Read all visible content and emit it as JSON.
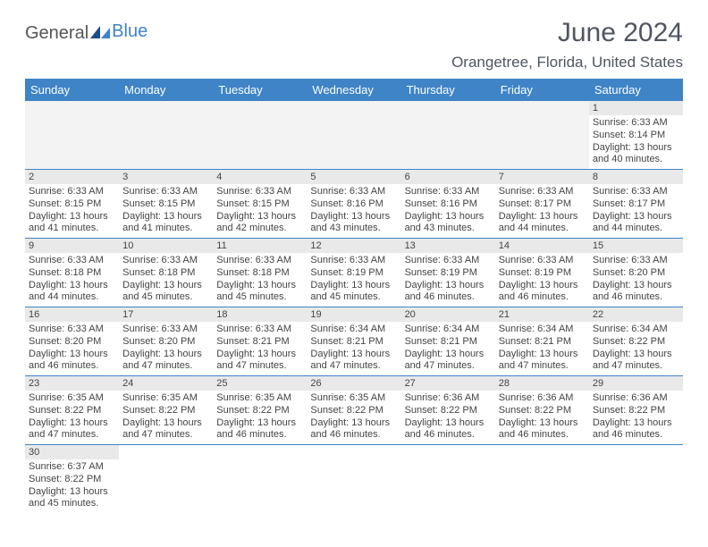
{
  "logo": {
    "general": "General",
    "blue": "Blue"
  },
  "title": "June 2024",
  "location": "Orangetree, Florida, United States",
  "header_bg": "#3e84c6",
  "days": [
    "Sunday",
    "Monday",
    "Tuesday",
    "Wednesday",
    "Thursday",
    "Friday",
    "Saturday"
  ],
  "grid_cols": 7,
  "grid_rows": 6,
  "first_day_col": 6,
  "cells": [
    {
      "n": "1",
      "sr": "6:33 AM",
      "ss": "8:14 PM",
      "dl": "13 hours and 40 minutes."
    },
    {
      "n": "2",
      "sr": "6:33 AM",
      "ss": "8:15 PM",
      "dl": "13 hours and 41 minutes."
    },
    {
      "n": "3",
      "sr": "6:33 AM",
      "ss": "8:15 PM",
      "dl": "13 hours and 41 minutes."
    },
    {
      "n": "4",
      "sr": "6:33 AM",
      "ss": "8:15 PM",
      "dl": "13 hours and 42 minutes."
    },
    {
      "n": "5",
      "sr": "6:33 AM",
      "ss": "8:16 PM",
      "dl": "13 hours and 43 minutes."
    },
    {
      "n": "6",
      "sr": "6:33 AM",
      "ss": "8:16 PM",
      "dl": "13 hours and 43 minutes."
    },
    {
      "n": "7",
      "sr": "6:33 AM",
      "ss": "8:17 PM",
      "dl": "13 hours and 44 minutes."
    },
    {
      "n": "8",
      "sr": "6:33 AM",
      "ss": "8:17 PM",
      "dl": "13 hours and 44 minutes."
    },
    {
      "n": "9",
      "sr": "6:33 AM",
      "ss": "8:18 PM",
      "dl": "13 hours and 44 minutes."
    },
    {
      "n": "10",
      "sr": "6:33 AM",
      "ss": "8:18 PM",
      "dl": "13 hours and 45 minutes."
    },
    {
      "n": "11",
      "sr": "6:33 AM",
      "ss": "8:18 PM",
      "dl": "13 hours and 45 minutes."
    },
    {
      "n": "12",
      "sr": "6:33 AM",
      "ss": "8:19 PM",
      "dl": "13 hours and 45 minutes."
    },
    {
      "n": "13",
      "sr": "6:33 AM",
      "ss": "8:19 PM",
      "dl": "13 hours and 46 minutes."
    },
    {
      "n": "14",
      "sr": "6:33 AM",
      "ss": "8:19 PM",
      "dl": "13 hours and 46 minutes."
    },
    {
      "n": "15",
      "sr": "6:33 AM",
      "ss": "8:20 PM",
      "dl": "13 hours and 46 minutes."
    },
    {
      "n": "16",
      "sr": "6:33 AM",
      "ss": "8:20 PM",
      "dl": "13 hours and 46 minutes."
    },
    {
      "n": "17",
      "sr": "6:33 AM",
      "ss": "8:20 PM",
      "dl": "13 hours and 47 minutes."
    },
    {
      "n": "18",
      "sr": "6:33 AM",
      "ss": "8:21 PM",
      "dl": "13 hours and 47 minutes."
    },
    {
      "n": "19",
      "sr": "6:34 AM",
      "ss": "8:21 PM",
      "dl": "13 hours and 47 minutes."
    },
    {
      "n": "20",
      "sr": "6:34 AM",
      "ss": "8:21 PM",
      "dl": "13 hours and 47 minutes."
    },
    {
      "n": "21",
      "sr": "6:34 AM",
      "ss": "8:21 PM",
      "dl": "13 hours and 47 minutes."
    },
    {
      "n": "22",
      "sr": "6:34 AM",
      "ss": "8:22 PM",
      "dl": "13 hours and 47 minutes."
    },
    {
      "n": "23",
      "sr": "6:35 AM",
      "ss": "8:22 PM",
      "dl": "13 hours and 47 minutes."
    },
    {
      "n": "24",
      "sr": "6:35 AM",
      "ss": "8:22 PM",
      "dl": "13 hours and 47 minutes."
    },
    {
      "n": "25",
      "sr": "6:35 AM",
      "ss": "8:22 PM",
      "dl": "13 hours and 46 minutes."
    },
    {
      "n": "26",
      "sr": "6:35 AM",
      "ss": "8:22 PM",
      "dl": "13 hours and 46 minutes."
    },
    {
      "n": "27",
      "sr": "6:36 AM",
      "ss": "8:22 PM",
      "dl": "13 hours and 46 minutes."
    },
    {
      "n": "28",
      "sr": "6:36 AM",
      "ss": "8:22 PM",
      "dl": "13 hours and 46 minutes."
    },
    {
      "n": "29",
      "sr": "6:36 AM",
      "ss": "8:22 PM",
      "dl": "13 hours and 46 minutes."
    },
    {
      "n": "30",
      "sr": "6:37 AM",
      "ss": "8:22 PM",
      "dl": "13 hours and 45 minutes."
    }
  ],
  "labels": {
    "sunrise": "Sunrise:",
    "sunset": "Sunset:",
    "daylight": "Daylight:"
  }
}
